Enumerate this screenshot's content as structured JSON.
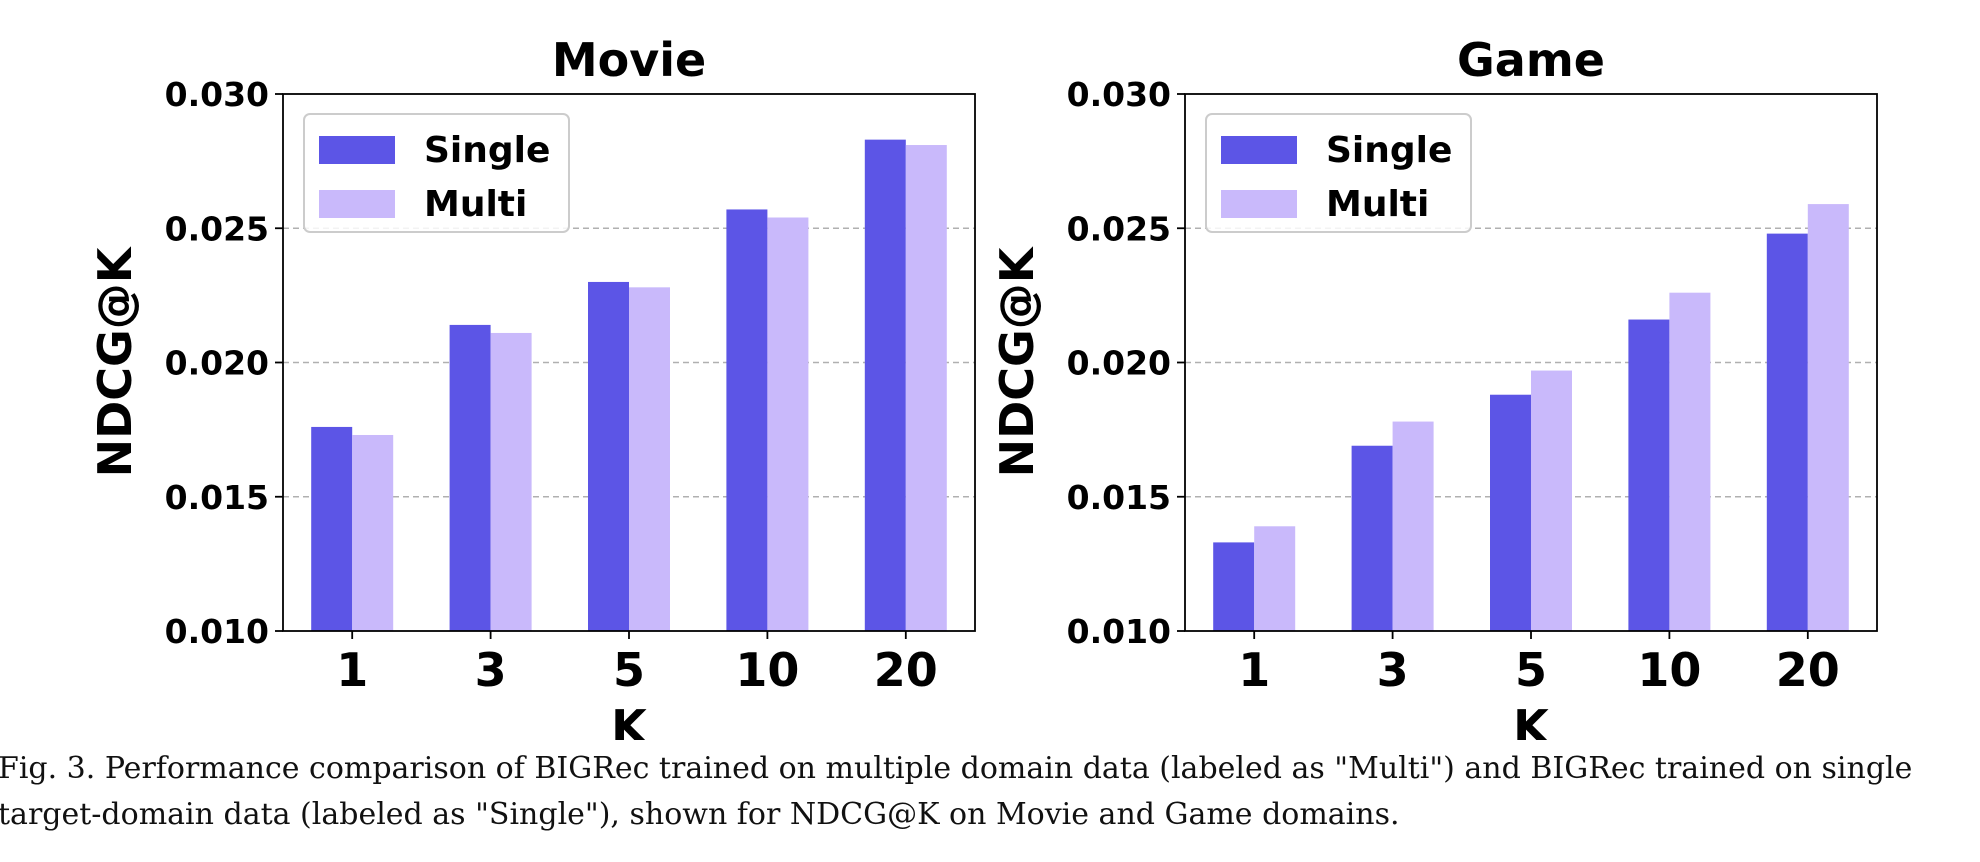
{
  "colors": {
    "single": "#5c55e6",
    "multi": "#c9b9fb",
    "grid": "#b0b0b0",
    "legend_border": "#cccccc"
  },
  "caption": {
    "line1": "Fig. 3.  Performance comparison of BIGRec trained on multiple domain data (labeled as \"Multi\") and BIGRec trained on single",
    "line2": "target-domain data (labeled as \"Single\"), shown for NDCG@K on Movie and Game domains."
  },
  "chart_data": [
    {
      "type": "bar",
      "title": "Movie",
      "xlabel": "K",
      "ylabel": "NDCG@K",
      "categories": [
        "1",
        "3",
        "5",
        "10",
        "20"
      ],
      "series": [
        {
          "name": "Single",
          "values": [
            0.0176,
            0.0214,
            0.023,
            0.0257,
            0.0283
          ]
        },
        {
          "name": "Multi",
          "values": [
            0.0173,
            0.0211,
            0.0228,
            0.0254,
            0.0281
          ]
        }
      ],
      "ylim": [
        0.01,
        0.03
      ],
      "yticks": [
        "0.010",
        "0.015",
        "0.020",
        "0.025",
        "0.030"
      ],
      "grid": "y-dashed",
      "legend": "top-left"
    },
    {
      "type": "bar",
      "title": "Game",
      "xlabel": "K",
      "ylabel": "NDCG@K",
      "categories": [
        "1",
        "3",
        "5",
        "10",
        "20"
      ],
      "series": [
        {
          "name": "Single",
          "values": [
            0.0133,
            0.0169,
            0.0188,
            0.0216,
            0.0248
          ]
        },
        {
          "name": "Multi",
          "values": [
            0.0139,
            0.0178,
            0.0197,
            0.0226,
            0.0259
          ]
        }
      ],
      "ylim": [
        0.01,
        0.03
      ],
      "yticks": [
        "0.010",
        "0.015",
        "0.020",
        "0.025",
        "0.030"
      ],
      "grid": "y-dashed",
      "legend": "top-left"
    }
  ]
}
